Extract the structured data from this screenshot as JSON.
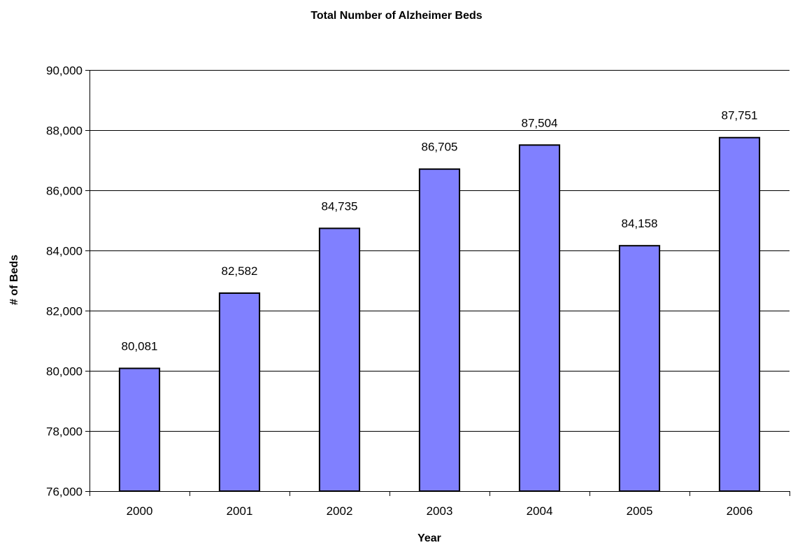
{
  "chart_data": {
    "type": "bar",
    "title": "Total Number of Alzheimer Beds",
    "xlabel": "Year",
    "ylabel": "# of Beds",
    "categories": [
      "2000",
      "2001",
      "2002",
      "2003",
      "2004",
      "2005",
      "2006"
    ],
    "values": [
      80081,
      82582,
      84735,
      86705,
      87504,
      84158,
      87751
    ],
    "data_labels": [
      "80,081",
      "82,582",
      "84,735",
      "86,705",
      "87,504",
      "84,158",
      "87,751"
    ],
    "ylim": [
      76000,
      90000
    ],
    "yticks": [
      76000,
      78000,
      80000,
      82000,
      84000,
      86000,
      88000,
      90000
    ],
    "ytick_labels": [
      "76,000",
      "78,000",
      "80,000",
      "82,000",
      "84,000",
      "86,000",
      "88,000",
      "90,000"
    ],
    "grid": true,
    "legend": "none",
    "bar_color": "#8080ff",
    "bar_edge_color": "#000000"
  }
}
